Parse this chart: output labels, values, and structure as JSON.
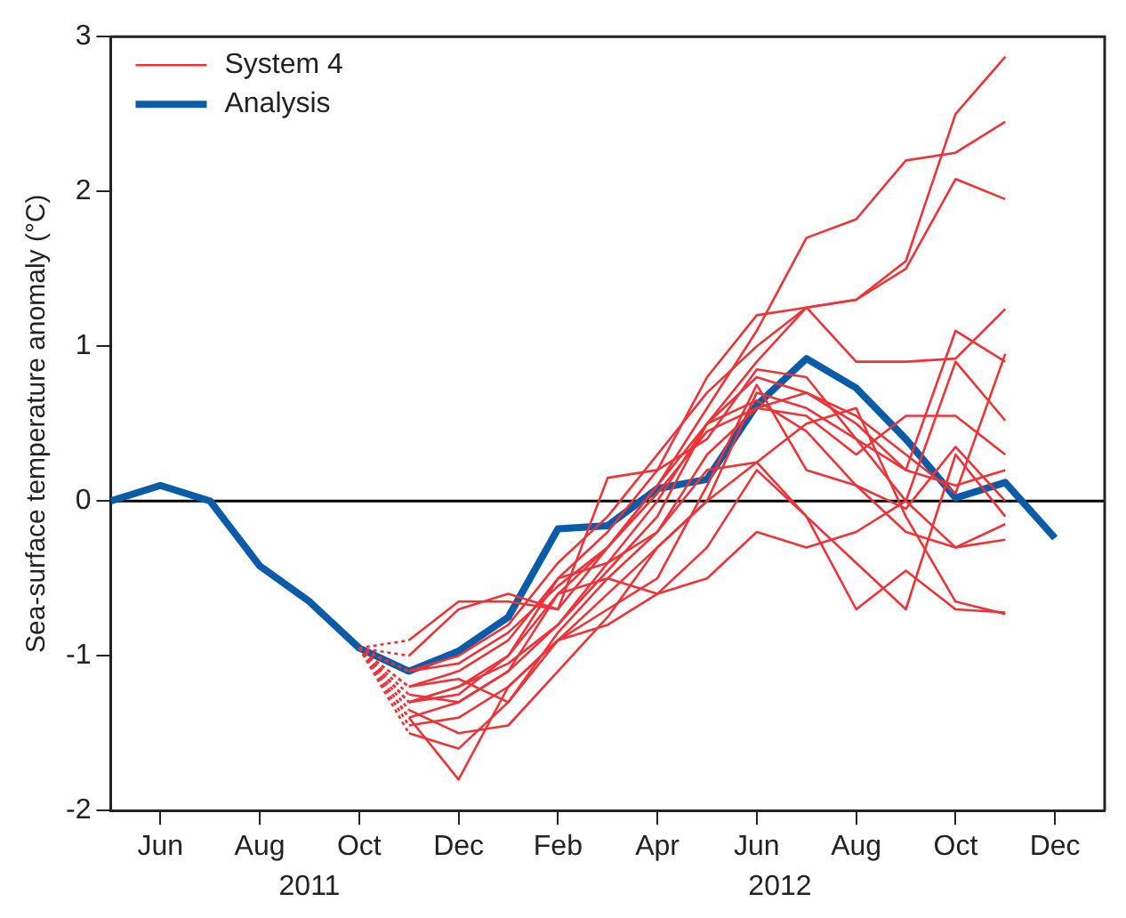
{
  "chart_data": {
    "type": "line",
    "ylabel": "Sea-surface temperature anomaly (°C)",
    "xlim": [
      "2011-05",
      "2013-01"
    ],
    "ylim": [
      -2,
      3
    ],
    "yticks": [
      -2,
      -1,
      0,
      1,
      2,
      3
    ],
    "xticks": [
      {
        "value": "2011-06",
        "label": "Jun"
      },
      {
        "value": "2011-08",
        "label": "Aug"
      },
      {
        "value": "2011-10",
        "label": "Oct"
      },
      {
        "value": "2011-12",
        "label": "Dec"
      },
      {
        "value": "2012-02",
        "label": "Feb"
      },
      {
        "value": "2012-04",
        "label": "Apr"
      },
      {
        "value": "2012-06",
        "label": "Jun"
      },
      {
        "value": "2012-08",
        "label": "Aug"
      },
      {
        "value": "2012-10",
        "label": "Oct"
      },
      {
        "value": "2012-12",
        "label": "Dec"
      }
    ],
    "x2lim": [
      "2011-05",
      "2013-01"
    ],
    "x2ticks": [
      {
        "value": "2011-09",
        "label": "2011"
      },
      {
        "value": "2012-06-15",
        "label": "2012"
      }
    ],
    "grid": false,
    "legend": "top left",
    "line_style": "solid",
    "marker": "none",
    "ref_lines": [
      {
        "axis": "y",
        "value": 0,
        "color": "#000000"
      }
    ],
    "series": [
      {
        "name": "System 4",
        "color": "#ee3338",
        "x": [
          "2011-10",
          "2011-11",
          "2011-12",
          "2012-01",
          "2012-02",
          "2012-03",
          "2012-04",
          "2012-05",
          "2012-06",
          "2012-07",
          "2012-08",
          "2012-09",
          "2012-10",
          "2012-11"
        ],
        "values": [
          -0.95,
          -1.2,
          -1.1,
          -0.9,
          -0.5,
          -0.2,
          0.2,
          0.8,
          1.2,
          1.25,
          1.3,
          1.55,
          2.5,
          2.87
        ]
      },
      {
        "color": "#ee3338",
        "x": [
          "2011-10",
          "2011-11",
          "2011-12",
          "2012-01",
          "2012-02",
          "2012-03",
          "2012-04",
          "2012-05",
          "2012-06",
          "2012-07",
          "2012-08",
          "2012-09",
          "2012-10",
          "2012-11"
        ],
        "values": [
          -0.95,
          -1.3,
          -1.2,
          -1.0,
          -0.6,
          -0.3,
          0.1,
          0.6,
          1.1,
          1.7,
          1.82,
          2.2,
          2.25,
          2.45
        ]
      },
      {
        "color": "#ee3338",
        "x": [
          "2011-10",
          "2011-11",
          "2011-12",
          "2012-01",
          "2012-02",
          "2012-03",
          "2012-04",
          "2012-05",
          "2012-06",
          "2012-07",
          "2012-08",
          "2012-09",
          "2012-10",
          "2012-11"
        ],
        "values": [
          -0.95,
          -1.1,
          -1.0,
          -0.8,
          -0.4,
          -0.1,
          0.3,
          0.7,
          1.0,
          1.25,
          1.3,
          1.5,
          2.08,
          1.95
        ]
      },
      {
        "color": "#ee3338",
        "x": [
          "2011-10",
          "2011-11",
          "2011-12",
          "2012-01",
          "2012-02",
          "2012-03",
          "2012-04",
          "2012-05",
          "2012-06",
          "2012-07",
          "2012-08",
          "2012-09",
          "2012-10",
          "2012-11"
        ],
        "values": [
          -0.95,
          -1.4,
          -1.3,
          -1.1,
          -0.8,
          -0.4,
          0.0,
          0.5,
          0.9,
          1.25,
          0.9,
          0.9,
          0.92,
          1.24
        ]
      },
      {
        "color": "#ee3338",
        "x": [
          "2011-10",
          "2011-11",
          "2011-12",
          "2012-01",
          "2012-02",
          "2012-03",
          "2012-04",
          "2012-05",
          "2012-06",
          "2012-07",
          "2012-08",
          "2012-09",
          "2012-10",
          "2012-11"
        ],
        "values": [
          -0.95,
          -0.9,
          -0.65,
          -0.65,
          -0.7,
          -0.3,
          0.1,
          0.5,
          0.8,
          0.7,
          0.5,
          0.2,
          1.1,
          0.9
        ]
      },
      {
        "color": "#ee3338",
        "x": [
          "2011-10",
          "2011-11",
          "2011-12",
          "2012-01",
          "2012-02",
          "2012-03",
          "2012-04",
          "2012-05",
          "2012-06",
          "2012-07",
          "2012-08",
          "2012-09",
          "2012-10",
          "2012-11"
        ],
        "values": [
          -0.95,
          -1.0,
          -0.7,
          -0.6,
          -0.7,
          0.15,
          0.2,
          0.4,
          0.85,
          0.8,
          0.4,
          0.0,
          0.9,
          0.52
        ]
      },
      {
        "color": "#ee3338",
        "x": [
          "2011-10",
          "2011-11",
          "2011-12",
          "2012-01",
          "2012-02",
          "2012-03",
          "2012-04",
          "2012-05",
          "2012-06",
          "2012-07",
          "2012-08",
          "2012-09",
          "2012-10",
          "2012-11"
        ],
        "values": [
          -0.95,
          -1.3,
          -1.25,
          -1.0,
          -0.5,
          -0.4,
          -0.2,
          0.3,
          0.6,
          0.55,
          0.3,
          0.55,
          0.55,
          0.3
        ]
      },
      {
        "color": "#ee3338",
        "x": [
          "2011-10",
          "2011-11",
          "2011-12",
          "2012-01",
          "2012-02",
          "2012-03",
          "2012-04",
          "2012-05",
          "2012-06",
          "2012-07",
          "2012-08",
          "2012-09",
          "2012-10",
          "2012-11"
        ],
        "values": [
          -0.95,
          -1.45,
          -1.4,
          -1.2,
          -0.9,
          -0.6,
          -0.3,
          0.0,
          0.7,
          0.6,
          0.4,
          0.2,
          0.1,
          0.2
        ]
      },
      {
        "color": "#ee3338",
        "x": [
          "2011-10",
          "2011-11",
          "2011-12",
          "2012-01",
          "2012-02",
          "2012-03",
          "2012-04",
          "2012-05",
          "2012-06",
          "2012-07",
          "2012-08",
          "2012-09",
          "2012-10",
          "2012-11"
        ],
        "values": [
          -0.95,
          -1.5,
          -1.6,
          -1.3,
          -0.9,
          -0.7,
          -0.5,
          0.1,
          0.75,
          0.2,
          0.1,
          -0.05,
          0.35,
          0.0
        ]
      },
      {
        "color": "#ee3338",
        "x": [
          "2011-10",
          "2011-11",
          "2011-12",
          "2012-01",
          "2012-02",
          "2012-03",
          "2012-04",
          "2012-05",
          "2012-06",
          "2012-07",
          "2012-08",
          "2012-09",
          "2012-10",
          "2012-11"
        ],
        "values": [
          -0.95,
          -1.35,
          -1.5,
          -1.45,
          -1.1,
          -0.75,
          -0.3,
          0.0,
          0.25,
          -0.1,
          -0.4,
          -0.7,
          0.3,
          -0.1
        ]
      },
      {
        "color": "#ee3338",
        "x": [
          "2011-10",
          "2011-11",
          "2011-12",
          "2012-01",
          "2012-02",
          "2012-03",
          "2012-04",
          "2012-05",
          "2012-06",
          "2012-07",
          "2012-08",
          "2012-09",
          "2012-10",
          "2012-11"
        ],
        "values": [
          -0.95,
          -1.2,
          -1.15,
          -1.3,
          -0.85,
          -0.5,
          -0.6,
          -0.5,
          -0.2,
          -0.3,
          -0.2,
          0.0,
          -0.3,
          -0.25
        ]
      },
      {
        "color": "#ee3338",
        "x": [
          "2011-10",
          "2011-11",
          "2011-12",
          "2012-01",
          "2012-02",
          "2012-03",
          "2012-04",
          "2012-05",
          "2012-06",
          "2012-07",
          "2012-08",
          "2012-09",
          "2012-10",
          "2012-11"
        ],
        "values": [
          -0.95,
          -1.4,
          -1.8,
          -1.2,
          -0.9,
          -0.8,
          -0.6,
          -0.3,
          0.2,
          -0.1,
          -0.7,
          -0.45,
          -0.7,
          -0.72
        ]
      },
      {
        "color": "#ee3338",
        "x": [
          "2011-10",
          "2011-11",
          "2011-12",
          "2012-01",
          "2012-02",
          "2012-03",
          "2012-04",
          "2012-05",
          "2012-06",
          "2012-07",
          "2012-08",
          "2012-09",
          "2012-10",
          "2012-11"
        ],
        "values": [
          -0.95,
          -1.25,
          -1.3,
          -1.1,
          -0.6,
          -0.5,
          -0.2,
          0.2,
          0.25,
          0.5,
          0.6,
          -0.1,
          -0.65,
          -0.73
        ]
      },
      {
        "color": "#ee3338",
        "x": [
          "2011-10",
          "2011-11",
          "2011-12",
          "2012-01",
          "2012-02",
          "2012-03",
          "2012-04",
          "2012-05",
          "2012-06",
          "2012-07",
          "2012-08",
          "2012-09",
          "2012-10",
          "2012-11"
        ],
        "values": [
          -0.95,
          -1.3,
          -1.2,
          -1.05,
          -0.8,
          -0.45,
          -0.1,
          0.5,
          0.65,
          0.45,
          0.1,
          -0.2,
          -0.3,
          -0.15
        ]
      },
      {
        "color": "#ee3338",
        "x": [
          "2011-10",
          "2011-11",
          "2011-12",
          "2012-01",
          "2012-02",
          "2012-03",
          "2012-04",
          "2012-05",
          "2012-06",
          "2012-07",
          "2012-08",
          "2012-09",
          "2012-10",
          "2012-11"
        ],
        "values": [
          -0.95,
          -1.1,
          -1.05,
          -0.85,
          -0.55,
          -0.3,
          0.05,
          0.45,
          0.6,
          0.7,
          0.55,
          0.3,
          0.05,
          0.95
        ]
      },
      {
        "name": "Analysis",
        "color": "#0b5ca8",
        "x": [
          "2011-05",
          "2011-06",
          "2011-07",
          "2011-08",
          "2011-09",
          "2011-10",
          "2011-11",
          "2011-12",
          "2012-01",
          "2012-02",
          "2012-03",
          "2012-04",
          "2012-05",
          "2012-06",
          "2012-07",
          "2012-08",
          "2012-09",
          "2012-10",
          "2012-11",
          "2012-12"
        ],
        "values": [
          0.0,
          0.1,
          0.0,
          -0.42,
          -0.65,
          -0.95,
          -1.1,
          -0.97,
          -0.75,
          -0.18,
          -0.16,
          0.08,
          0.14,
          0.62,
          0.92,
          0.73,
          0.4,
          0.02,
          0.12,
          -0.24
        ]
      }
    ]
  }
}
